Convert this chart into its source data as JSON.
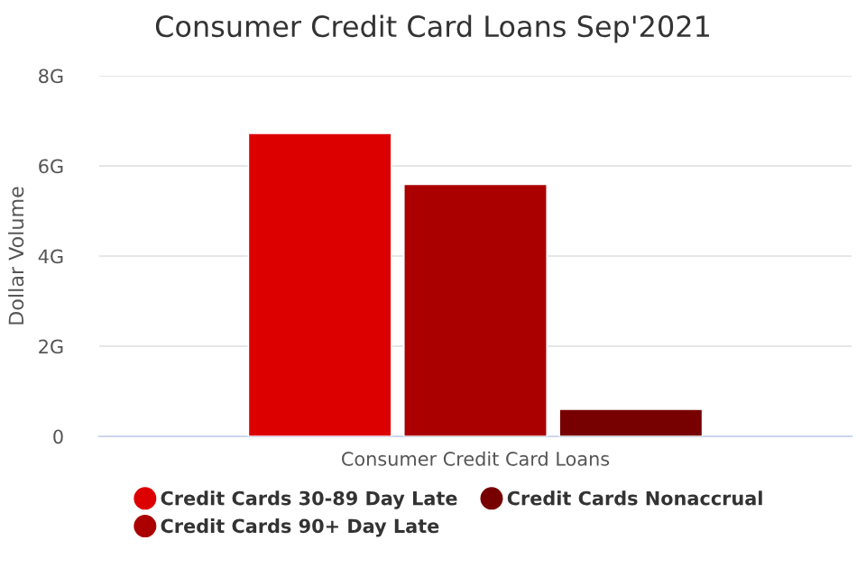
{
  "chart_data": {
    "type": "bar",
    "title": "Consumer Credit Card Loans Sep'2021",
    "ylabel": "Dollar Volume",
    "categories": [
      "Consumer Credit Card Loans"
    ],
    "series": [
      {
        "name": "Credit Cards 30-89 Day Late",
        "color": "#dd0000",
        "values": [
          6.72
        ]
      },
      {
        "name": "Credit Cards 90+ Day Late",
        "color": "#aa0000",
        "values": [
          5.59
        ]
      },
      {
        "name": "Credit Cards Nonaccrual",
        "color": "#770000",
        "values": [
          0.6
        ]
      }
    ],
    "ylim": [
      0,
      8
    ],
    "yticks": [
      {
        "value": 0,
        "label": "0"
      },
      {
        "value": 2,
        "label": "2G"
      },
      {
        "value": 4,
        "label": "4G"
      },
      {
        "value": 6,
        "label": "6G"
      },
      {
        "value": 8,
        "label": "8G"
      }
    ],
    "grid": "y",
    "legend": "bottom"
  }
}
